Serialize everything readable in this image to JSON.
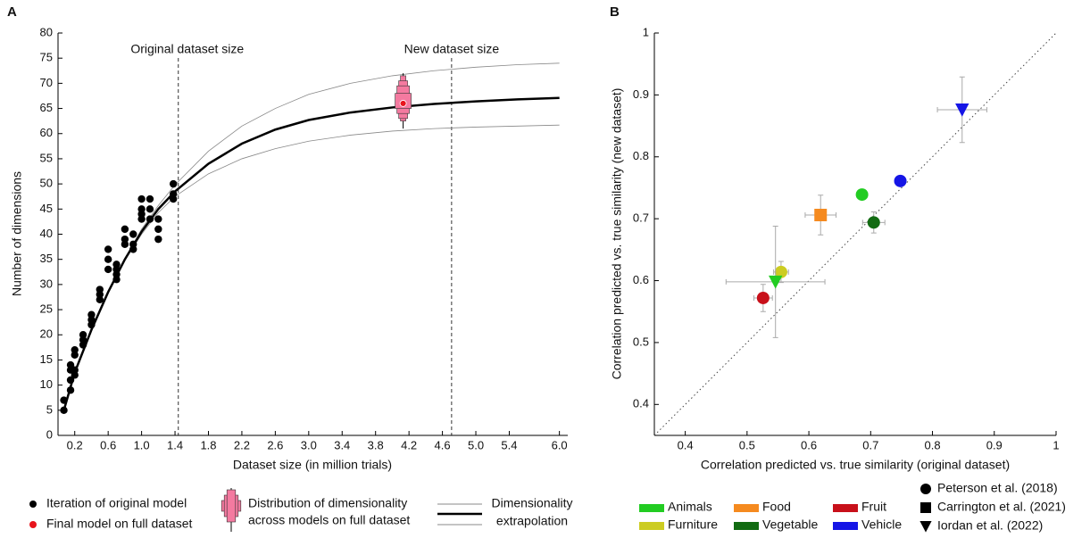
{
  "chart_data": [
    {
      "type": "line",
      "panel": "A",
      "xlabel": "Dataset size (in million trials)",
      "ylabel": "Number of dimensions",
      "xlim": [
        0,
        6.1
      ],
      "ylim": [
        0,
        80
      ],
      "xticks": [
        0.2,
        0.6,
        {
          "value": 1,
          "label": "1.0"
        },
        1.4,
        1.8,
        2.2,
        2.6,
        {
          "value": 3,
          "label": "3.0"
        },
        3.4,
        3.8,
        4.2,
        4.6,
        {
          "value": 5,
          "label": "5.0"
        },
        5.4,
        {
          "value": 6,
          "label": "6.0"
        }
      ],
      "yticks": [
        0,
        5,
        10,
        15,
        20,
        25,
        30,
        35,
        40,
        45,
        50,
        55,
        60,
        65,
        70,
        75,
        80
      ],
      "vlines": [
        {
          "x": 1.44,
          "label": "Original dataset size"
        },
        {
          "x": 4.71,
          "label": "New dataset size"
        }
      ],
      "points": {
        "name": "Iteration of original model",
        "color": "#000000",
        "x": [
          0.07,
          0.07,
          0.15,
          0.15,
          0.15,
          0.15,
          0.2,
          0.2,
          0.2,
          0.2,
          0.3,
          0.3,
          0.3,
          0.4,
          0.4,
          0.4,
          0.5,
          0.5,
          0.5,
          0.6,
          0.6,
          0.6,
          0.7,
          0.7,
          0.7,
          0.7,
          0.8,
          0.8,
          0.8,
          0.9,
          0.9,
          0.9,
          1.0,
          1.0,
          1.0,
          1.0,
          1.1,
          1.1,
          1.1,
          1.2,
          1.2,
          1.2,
          1.38,
          1.38,
          1.38
        ],
        "y": [
          5,
          7,
          9,
          11,
          13,
          14,
          12,
          13,
          16,
          17,
          18,
          19,
          20,
          22,
          23,
          24,
          27,
          28,
          29,
          33,
          35,
          37,
          31,
          32,
          33,
          34,
          38,
          39,
          41,
          37,
          38,
          40,
          43,
          44,
          45,
          47,
          43,
          45,
          47,
          39,
          41,
          43,
          47,
          48,
          50
        ]
      },
      "final": {
        "name": "Final model on full dataset",
        "color": "#e8141c",
        "x": 4.13,
        "y": 66
      },
      "distribution": {
        "name": [
          "Distribution of dimensionality",
          "across models on full dataset"
        ],
        "color": "#f47aa0",
        "x": 4.13,
        "levels": [
          [
            65,
            68
          ],
          [
            64,
            69.5
          ],
          [
            63,
            70.5
          ],
          [
            62.5,
            71.5
          ]
        ],
        "whisker": [
          61,
          72
        ]
      },
      "curves": {
        "name": [
          "Dimensionality",
          "extrapolation"
        ],
        "x": [
          0.07,
          0.2,
          0.4,
          0.6,
          0.8,
          1.0,
          1.2,
          1.4,
          1.8,
          2.2,
          2.6,
          3.0,
          3.5,
          4.0,
          4.5,
          5.0,
          5.5,
          6.0
        ],
        "center": [
          5,
          12.5,
          21,
          28.5,
          35,
          40.5,
          45,
          48.5,
          54,
          58,
          60.8,
          62.7,
          64.2,
          65.2,
          65.9,
          66.4,
          66.8,
          67.1
        ],
        "upper": [
          5,
          12.5,
          21,
          28.6,
          35.2,
          41,
          45.7,
          49.8,
          56.5,
          61.5,
          65,
          67.8,
          70,
          71.5,
          72.5,
          73.2,
          73.7,
          74
        ],
        "lower": [
          5,
          12.5,
          21,
          28.4,
          34.8,
          40,
          44.3,
          47.5,
          52,
          55,
          57,
          58.5,
          59.7,
          60.5,
          61,
          61.3,
          61.5,
          61.7
        ]
      }
    },
    {
      "type": "scatter",
      "panel": "B",
      "xlabel": "Correlation predicted vs. true similarity (original dataset)",
      "ylabel": "Correlation predicted vs. true similarity (new dataset)",
      "xlim": [
        0.35,
        1
      ],
      "ylim": [
        0.35,
        1
      ],
      "xticks": [
        0.4,
        0.5,
        0.6,
        0.7,
        0.8,
        0.9,
        1
      ],
      "yticks": [
        0.4,
        0.5,
        0.6,
        0.7,
        0.8,
        0.9,
        1
      ],
      "categories": [
        {
          "name": "Animals",
          "color": "#22cc22"
        },
        {
          "name": "Food",
          "color": "#f58a1f"
        },
        {
          "name": "Fruit",
          "color": "#c8101a"
        },
        {
          "name": "Furniture",
          "color": "#cccc22"
        },
        {
          "name": "Vegetable",
          "color": "#126b12"
        },
        {
          "name": "Vehicle",
          "color": "#1515e6"
        }
      ],
      "sources": [
        {
          "name": "Peterson et al. (2018)",
          "marker": "circle",
          "colors": [
            "#22cc22",
            "#c8101a",
            "#cccc22",
            "#126b12",
            "#1515e6"
          ],
          "x": [
            0.686,
            0.526,
            0.555,
            0.705,
            0.748
          ],
          "y": [
            0.739,
            0.572,
            0.614,
            0.694,
            0.761
          ],
          "xerr": [
            0.008,
            0.015,
            0.012,
            0.018,
            0.006
          ],
          "yerr": [
            0.008,
            0.022,
            0.017,
            0.017,
            0.006
          ]
        },
        {
          "name": "Carrington et al. (2021)",
          "marker": "square",
          "colors": [
            "#f58a1f"
          ],
          "x": [
            0.619
          ],
          "y": [
            0.706
          ],
          "xerr": [
            0.025
          ],
          "yerr": [
            0.032
          ]
        },
        {
          "name": "Iordan et al. (2022)",
          "marker": "triangle",
          "colors": [
            "#22cc22",
            "#1515e6"
          ],
          "x": [
            0.546,
            0.848
          ],
          "y": [
            0.598,
            0.876
          ],
          "xerr": [
            0.08,
            0.04
          ],
          "yerr": [
            0.09,
            0.053
          ]
        }
      ]
    }
  ]
}
